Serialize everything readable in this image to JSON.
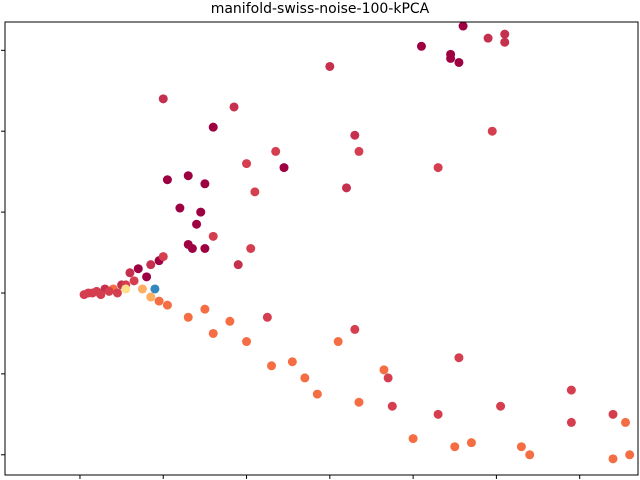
{
  "chart_data": {
    "type": "scatter",
    "title": "manifold-swiss-noise-100-kPCA",
    "xlabel": "",
    "ylabel": "",
    "xlim": [
      -0.9,
      6.7
    ],
    "ylim": [
      -2.25,
      3.35
    ],
    "x_ticks": [
      0,
      1,
      2,
      3,
      4,
      5,
      6
    ],
    "y_ticks": [
      -2,
      -1,
      0,
      1,
      2,
      3
    ],
    "tick_labels_visible": false,
    "grid": false,
    "colormap": "Spectral",
    "colors": [
      "#9e0142",
      "#c5304e",
      "#d53e4f",
      "#f46d43",
      "#fdae61",
      "#fee08b",
      "#3288bd"
    ],
    "points": [
      {
        "x": 4.6,
        "y": 3.3,
        "c": 0
      },
      {
        "x": 5.1,
        "y": 3.2,
        "c": 1
      },
      {
        "x": 4.1,
        "y": 3.05,
        "c": 0
      },
      {
        "x": 4.45,
        "y": 2.95,
        "c": 0
      },
      {
        "x": 4.55,
        "y": 2.85,
        "c": 0
      },
      {
        "x": 5.1,
        "y": 3.1,
        "c": 1
      },
      {
        "x": 4.9,
        "y": 3.15,
        "c": 1
      },
      {
        "x": 4.45,
        "y": 2.9,
        "c": 0
      },
      {
        "x": 3.0,
        "y": 2.8,
        "c": 1
      },
      {
        "x": 1.0,
        "y": 2.4,
        "c": 1
      },
      {
        "x": 1.6,
        "y": 2.05,
        "c": 0
      },
      {
        "x": 1.85,
        "y": 2.3,
        "c": 1
      },
      {
        "x": 3.3,
        "y": 1.95,
        "c": 1
      },
      {
        "x": 4.95,
        "y": 2.0,
        "c": 2
      },
      {
        "x": 3.35,
        "y": 1.75,
        "c": 2
      },
      {
        "x": 2.0,
        "y": 1.6,
        "c": 2
      },
      {
        "x": 2.35,
        "y": 1.75,
        "c": 2
      },
      {
        "x": 2.45,
        "y": 1.55,
        "c": 0
      },
      {
        "x": 3.2,
        "y": 1.3,
        "c": 1
      },
      {
        "x": 4.3,
        "y": 1.55,
        "c": 2
      },
      {
        "x": 2.1,
        "y": 1.25,
        "c": 2
      },
      {
        "x": 1.3,
        "y": 1.45,
        "c": 0
      },
      {
        "x": 1.05,
        "y": 1.4,
        "c": 0
      },
      {
        "x": 1.5,
        "y": 1.35,
        "c": 0
      },
      {
        "x": 0.1,
        "y": 0.0,
        "c": 2
      },
      {
        "x": 0.3,
        "y": 0.05,
        "c": 1
      },
      {
        "x": 0.5,
        "y": 0.1,
        "c": 1
      },
      {
        "x": 0.8,
        "y": 0.2,
        "c": 0
      },
      {
        "x": 0.95,
        "y": 0.4,
        "c": 0
      },
      {
        "x": 1.0,
        "y": 0.45,
        "c": 2
      },
      {
        "x": 1.3,
        "y": 0.6,
        "c": 0
      },
      {
        "x": 1.35,
        "y": 0.55,
        "c": 0
      },
      {
        "x": 0.85,
        "y": 0.35,
        "c": 1
      },
      {
        "x": 1.5,
        "y": 0.55,
        "c": 0
      },
      {
        "x": 0.55,
        "y": 0.1,
        "c": 2
      },
      {
        "x": 0.4,
        "y": 0.05,
        "c": 3
      },
      {
        "x": 0.65,
        "y": 0.15,
        "c": 2
      },
      {
        "x": 0.2,
        "y": 0.02,
        "c": 2
      },
      {
        "x": 1.9,
        "y": 0.35,
        "c": 1
      },
      {
        "x": 2.05,
        "y": 0.55,
        "c": 2
      },
      {
        "x": 1.4,
        "y": 0.85,
        "c": 0
      },
      {
        "x": 1.45,
        "y": 1.0,
        "c": 0
      },
      {
        "x": 1.2,
        "y": 1.05,
        "c": 0
      },
      {
        "x": 1.6,
        "y": 0.7,
        "c": 2
      },
      {
        "x": 0.7,
        "y": 0.3,
        "c": 0
      },
      {
        "x": 0.6,
        "y": 0.25,
        "c": 1
      },
      {
        "x": 1.5,
        "y": -0.2,
        "c": 3
      },
      {
        "x": 1.3,
        "y": -0.3,
        "c": 3
      },
      {
        "x": 1.6,
        "y": -0.5,
        "c": 3
      },
      {
        "x": 1.8,
        "y": -0.35,
        "c": 3
      },
      {
        "x": 2.25,
        "y": -0.3,
        "c": 2
      },
      {
        "x": 2.0,
        "y": -0.6,
        "c": 3
      },
      {
        "x": 2.3,
        "y": -0.9,
        "c": 3
      },
      {
        "x": 2.55,
        "y": -0.85,
        "c": 3
      },
      {
        "x": 2.7,
        "y": -1.05,
        "c": 3
      },
      {
        "x": 2.85,
        "y": -1.25,
        "c": 3
      },
      {
        "x": 3.3,
        "y": -0.45,
        "c": 2
      },
      {
        "x": 3.1,
        "y": -0.6,
        "c": 3
      },
      {
        "x": 3.7,
        "y": -1.05,
        "c": 2
      },
      {
        "x": 3.65,
        "y": -0.95,
        "c": 3
      },
      {
        "x": 3.35,
        "y": -1.35,
        "c": 3
      },
      {
        "x": 3.75,
        "y": -1.4,
        "c": 2
      },
      {
        "x": 4.55,
        "y": -0.8,
        "c": 2
      },
      {
        "x": 4.3,
        "y": -1.5,
        "c": 2
      },
      {
        "x": 4.0,
        "y": -1.8,
        "c": 3
      },
      {
        "x": 4.5,
        "y": -1.9,
        "c": 3
      },
      {
        "x": 4.7,
        "y": -1.85,
        "c": 3
      },
      {
        "x": 5.3,
        "y": -1.9,
        "c": 3
      },
      {
        "x": 5.4,
        "y": -2.0,
        "c": 3
      },
      {
        "x": 6.4,
        "y": -1.5,
        "c": 2
      },
      {
        "x": 6.55,
        "y": -1.6,
        "c": 3
      },
      {
        "x": 6.4,
        "y": -2.05,
        "c": 3
      },
      {
        "x": 6.6,
        "y": -2.0,
        "c": 3
      },
      {
        "x": 0.85,
        "y": -0.05,
        "c": 4
      },
      {
        "x": 0.95,
        "y": -0.1,
        "c": 3
      },
      {
        "x": 1.05,
        "y": -0.15,
        "c": 3
      },
      {
        "x": 0.9,
        "y": 0.05,
        "c": 6
      },
      {
        "x": 0.55,
        "y": 0.05,
        "c": 5
      },
      {
        "x": 0.75,
        "y": 0.05,
        "c": 4
      },
      {
        "x": 5.9,
        "y": -1.2,
        "c": 2
      },
      {
        "x": 5.9,
        "y": -1.6,
        "c": 2
      },
      {
        "x": 5.05,
        "y": -1.4,
        "c": 2
      },
      {
        "x": 0.45,
        "y": 0.0,
        "c": 2
      },
      {
        "x": 0.35,
        "y": 0.02,
        "c": 2
      },
      {
        "x": 0.25,
        "y": -0.02,
        "c": 2
      },
      {
        "x": 0.15,
        "y": 0.0,
        "c": 2
      },
      {
        "x": 0.05,
        "y": -0.02,
        "c": 2
      }
    ]
  }
}
